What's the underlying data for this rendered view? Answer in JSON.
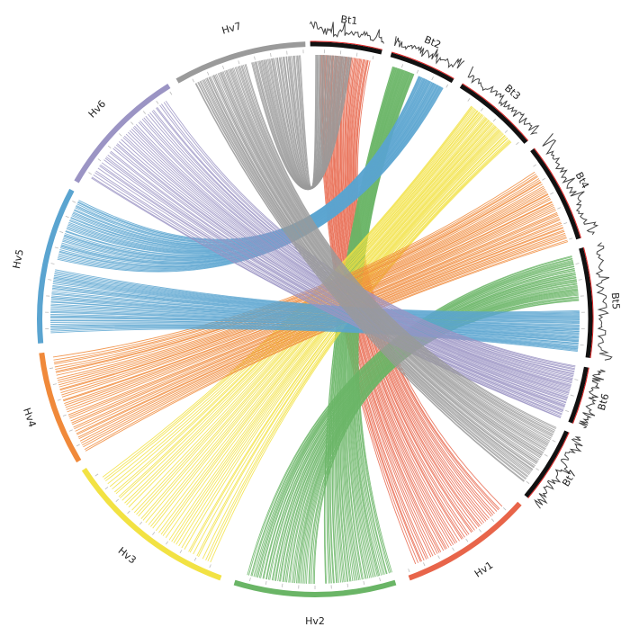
{
  "chromosomes": {
    "bt": [
      "Bt1",
      "Bt2",
      "Bt3",
      "Bt4",
      "Bt5",
      "Bt6",
      "Bt7"
    ],
    "hv": [
      "Hv1",
      "Hv2",
      "Hv3",
      "Hv4",
      "Hv5",
      "Hv6",
      "Hv7"
    ]
  }
}
